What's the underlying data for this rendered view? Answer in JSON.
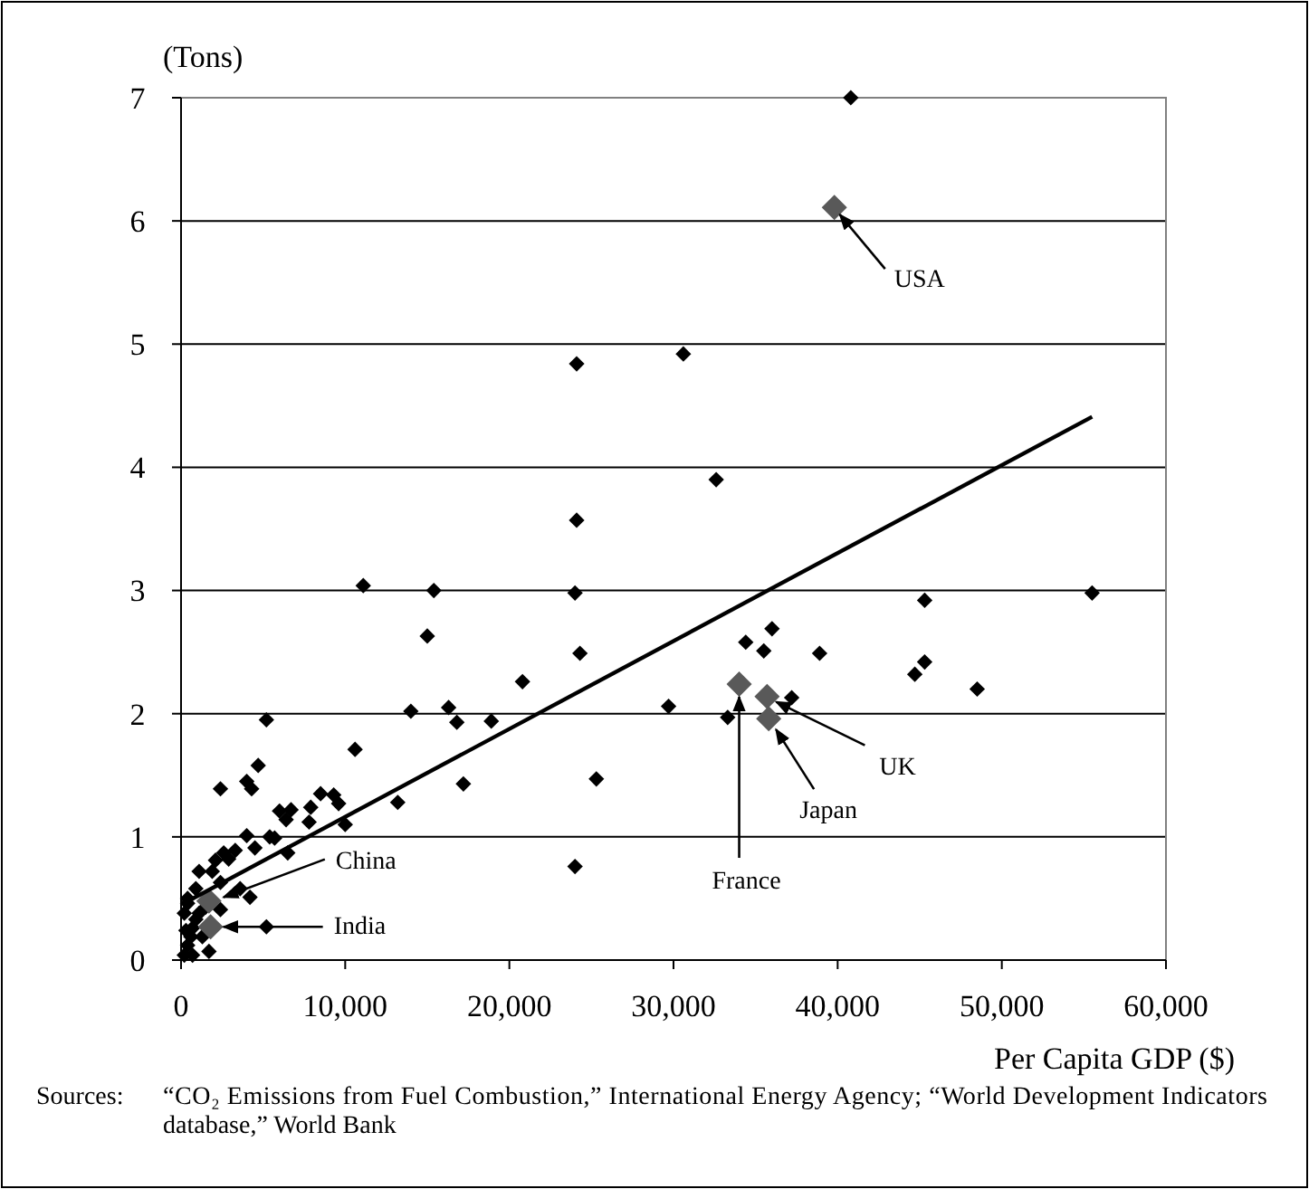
{
  "chart_data": {
    "type": "scatter",
    "ylabel": "(Tons)",
    "xlabel": "Per Capita GDP ($)",
    "xlim": [
      0,
      60000
    ],
    "xticks": [
      0,
      {
        "value": 10000,
        "label": "10,000"
      },
      {
        "value": 20000,
        "label": "20,000"
      },
      {
        "value": 30000,
        "label": "30,000"
      },
      {
        "value": 40000,
        "label": "40,000"
      },
      {
        "value": 50000,
        "label": "50,000"
      },
      {
        "value": 60000,
        "label": "60,000"
      }
    ],
    "ylim": [
      0,
      7
    ],
    "yticks": [
      0,
      1,
      2,
      3,
      4,
      5,
      6,
      7
    ],
    "grid": "y",
    "marker": "diamond",
    "series": [
      {
        "color": "#000000",
        "x": [
          40800,
          24100,
          30600,
          32600,
          24100,
          11100,
          15400,
          24000,
          55500,
          45300,
          15000,
          24300,
          34400,
          36000,
          35500,
          38900,
          45300,
          44700,
          48500,
          20800,
          37200,
          29700,
          33300,
          25300,
          24000,
          5200,
          14000,
          16300,
          16800,
          18900,
          10600,
          4700,
          2400,
          4000,
          4300,
          17200,
          6000,
          6700,
          6400,
          7800,
          7900,
          8500,
          9300,
          9600,
          10000,
          13200,
          4000,
          5400,
          5700,
          6500,
          4500,
          3300,
          2600,
          2100,
          2900,
          1100,
          1900,
          2400,
          3600,
          4200,
          400,
          900,
          1500,
          2400,
          5200,
          1700,
          200,
          400,
          600,
          700,
          900,
          1100,
          300,
          700,
          1300,
          200,
          400
        ],
        "values": [
          7.0,
          4.84,
          4.92,
          3.9,
          3.57,
          3.04,
          3.0,
          2.98,
          2.98,
          2.92,
          2.63,
          2.49,
          2.58,
          2.69,
          2.51,
          2.49,
          2.42,
          2.32,
          2.2,
          2.26,
          2.13,
          2.06,
          1.97,
          1.47,
          0.76,
          1.95,
          2.02,
          2.05,
          1.93,
          1.94,
          1.71,
          1.58,
          1.39,
          1.45,
          1.39,
          1.43,
          1.21,
          1.22,
          1.14,
          1.12,
          1.24,
          1.35,
          1.34,
          1.27,
          1.1,
          1.28,
          1.01,
          1.0,
          0.99,
          0.87,
          0.91,
          0.89,
          0.87,
          0.81,
          0.82,
          0.72,
          0.72,
          0.63,
          0.58,
          0.51,
          0.5,
          0.58,
          0.43,
          0.41,
          0.27,
          0.07,
          0.04,
          0.12,
          0.19,
          0.26,
          0.33,
          0.38,
          0.24,
          0.04,
          0.19,
          0.38,
          0.46
        ]
      },
      {
        "color": "#595959",
        "x": [
          39800,
          35700,
          35800,
          34000,
          1700,
          1800
        ],
        "values": [
          6.11,
          2.14,
          1.96,
          2.24,
          0.48,
          0.27
        ]
      },
      {
        "type": "line",
        "color": "#000000",
        "marker": "none",
        "x": [
          300,
          55500
        ],
        "values": [
          0.47,
          4.41
        ]
      }
    ],
    "annotations": [
      {
        "text": "USA",
        "x": 39800,
        "y": 6.11
      },
      {
        "text": "UK",
        "x": 35700,
        "y": 2.14
      },
      {
        "text": "Japan",
        "x": 35800,
        "y": 1.96
      },
      {
        "text": "France",
        "x": 34000,
        "y": 2.24
      },
      {
        "text": "China",
        "x": 1700,
        "y": 0.48
      },
      "India",
      "Sources: “CO₂ Emissions from Fuel Combustion,” International Energy Agency; “World Development Indicators database,” World Bank"
    ]
  }
}
